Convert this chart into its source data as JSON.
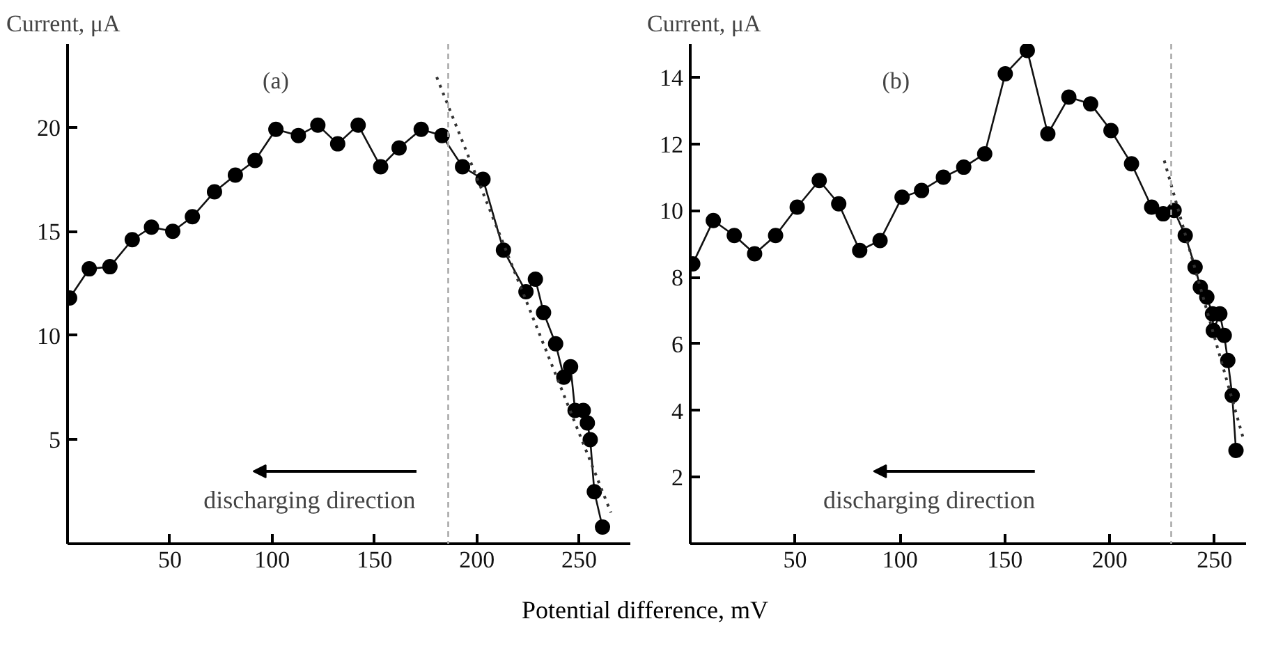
{
  "chart_data": [
    {
      "type": "line",
      "title": "(a)",
      "ylabel": "Current, μA",
      "xlabel": "Potential difference, mV",
      "xlim": [
        0,
        275
      ],
      "ylim": [
        0,
        24
      ],
      "xticks": [
        50,
        100,
        150,
        200,
        250
      ],
      "yticks": [
        5,
        10,
        15,
        20
      ],
      "grid": false,
      "marker": "circle",
      "ref_lines": [
        {
          "axis": "x",
          "value": 186,
          "color": "#aaaaaa",
          "line_style": "dashed"
        }
      ],
      "annotations": [
        "discharging direction"
      ],
      "series": [
        {
          "color": "#111111",
          "x": [
            1,
            10.6,
            20.7,
            31.6,
            41,
            51.4,
            61,
            71.8,
            82,
            91.6,
            101.8,
            112.8,
            122.3,
            132,
            142,
            153,
            162,
            172.8,
            183,
            193,
            203,
            213,
            224,
            228.6,
            232.6,
            238.5,
            242.5,
            245.8,
            248,
            252,
            254,
            255.4,
            257.4,
            261.4
          ],
          "values": [
            11.8,
            13.2,
            13.3,
            14.6,
            15.2,
            15.0,
            15.7,
            16.9,
            17.7,
            18.4,
            19.9,
            19.6,
            20.1,
            19.2,
            20.1,
            18.1,
            19.0,
            19.9,
            19.6,
            18.1,
            17.5,
            14.1,
            12.1,
            12.7,
            11.1,
            9.6,
            8.0,
            8.5,
            6.4,
            6.4,
            5.8,
            5.0,
            2.5,
            0.8
          ]
        },
        {
          "color": "#333333",
          "marker": "none",
          "line_style": "dotted",
          "x": [
            180.4,
            265.5
          ],
          "values": [
            22.4,
            1.5
          ]
        }
      ]
    },
    {
      "type": "line",
      "title": "(b)",
      "ylabel": "Current, μA",
      "xlim": [
        0,
        265
      ],
      "ylim": [
        0,
        15
      ],
      "xticks": [
        50,
        100,
        150,
        200,
        250
      ],
      "yticks": [
        2,
        4,
        6,
        8,
        10,
        12,
        14
      ],
      "grid": false,
      "marker": "circle",
      "ref_lines": [
        {
          "axis": "x",
          "value": 229.3,
          "color": "#aaaaaa",
          "line_style": "dashed"
        }
      ],
      "annotations": [
        "discharging direction"
      ],
      "series": [
        {
          "color": "#111111",
          "x": [
            1.2,
            11,
            21,
            30.7,
            40.7,
            51,
            61.5,
            70.8,
            80.8,
            90.5,
            101,
            110.3,
            120.7,
            130.4,
            140.4,
            150.2,
            160.7,
            170.5,
            180.5,
            190.9,
            200.6,
            210.4,
            220,
            225.5,
            230.7,
            236,
            240.7,
            243.2,
            246.3,
            249,
            249.4,
            252.5,
            254.6,
            256.3,
            258.4,
            260.2
          ],
          "values": [
            8.4,
            9.7,
            9.25,
            8.7,
            9.25,
            10.1,
            10.9,
            10.2,
            8.8,
            9.1,
            10.4,
            10.6,
            11.0,
            11.3,
            11.7,
            14.1,
            14.8,
            12.3,
            13.4,
            13.2,
            12.4,
            11.4,
            10.1,
            9.9,
            10.0,
            9.25,
            8.3,
            7.7,
            7.4,
            6.9,
            6.4,
            6.9,
            6.25,
            5.5,
            4.45,
            2.8
          ]
        },
        {
          "color": "#333333",
          "marker": "none",
          "line_style": "dotted",
          "x": [
            226,
            263.5
          ],
          "values": [
            11.5,
            3.2
          ]
        }
      ]
    }
  ]
}
